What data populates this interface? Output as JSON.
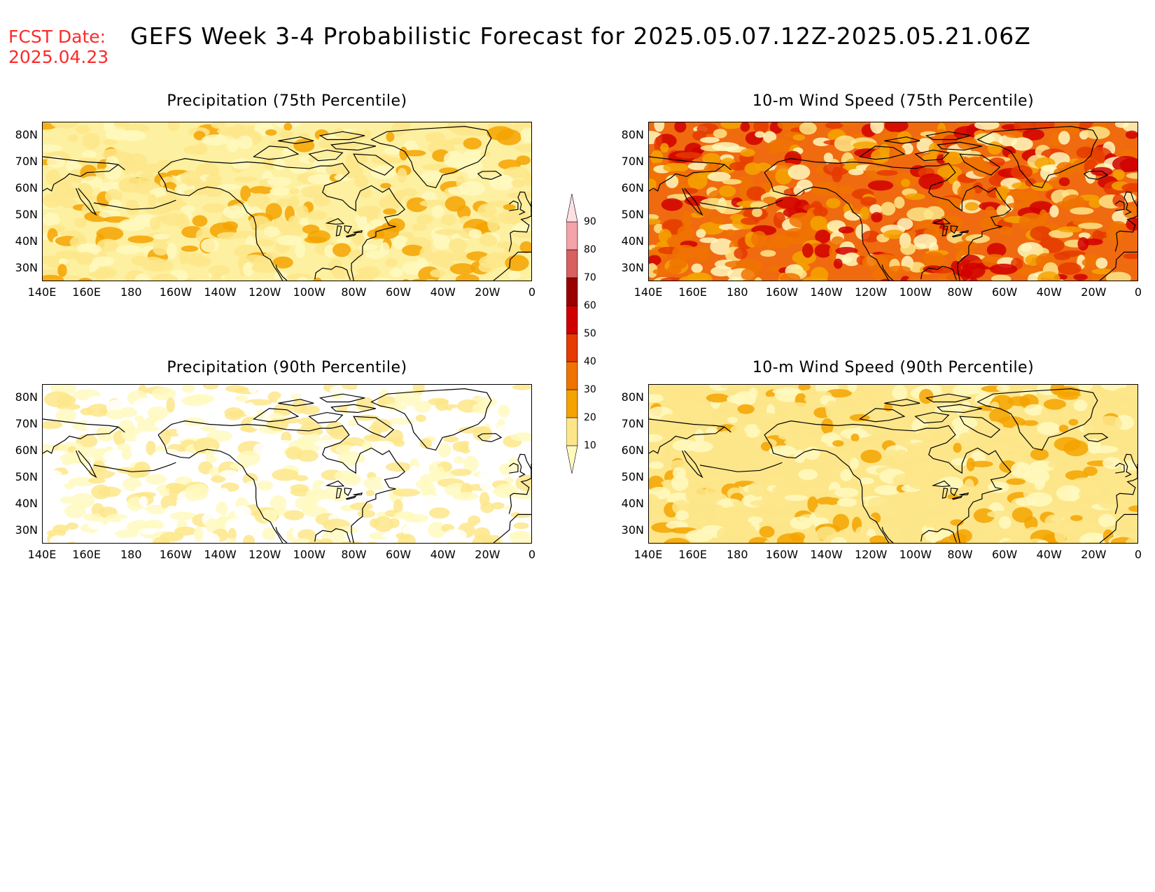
{
  "header": {
    "fcst_label": "FCST Date:",
    "fcst_date": "2025.04.23",
    "title": "GEFS Week 3-4 Probabilistic Forecast for 2025.05.07.12Z-2025.05.21.06Z"
  },
  "axes": {
    "lat_ticks": [
      "80N",
      "70N",
      "60N",
      "50N",
      "40N",
      "30N"
    ],
    "lon_ticks": [
      "140E",
      "160E",
      "180",
      "160W",
      "140W",
      "120W",
      "100W",
      "80W",
      "60W",
      "40W",
      "20W",
      "0"
    ]
  },
  "panels": [
    {
      "id": "precip-75",
      "title": "Precipitation (75th Percentile)",
      "base_color": "#fdf0a0",
      "level": "moderate"
    },
    {
      "id": "wind-75",
      "title": "10-m Wind Speed (75th Percentile)",
      "base_color": "#f06a10",
      "level": "high"
    },
    {
      "id": "precip-90",
      "title": "Precipitation (90th Percentile)",
      "base_color": "#ffffff",
      "level": "low"
    },
    {
      "id": "wind-90",
      "title": "10-m Wind Speed (90th Percentile)",
      "base_color": "#fde68a",
      "level": "moderate"
    }
  ],
  "colorbar": {
    "levels": [
      "10",
      "20",
      "30",
      "40",
      "50",
      "60",
      "70",
      "80",
      "90"
    ],
    "colors": [
      "#fff9c0",
      "#fde68a",
      "#f5a300",
      "#f07300",
      "#e53a00",
      "#d00000",
      "#9a0000",
      "#d86060",
      "#f2a2a8",
      "#fde0e4"
    ]
  }
}
